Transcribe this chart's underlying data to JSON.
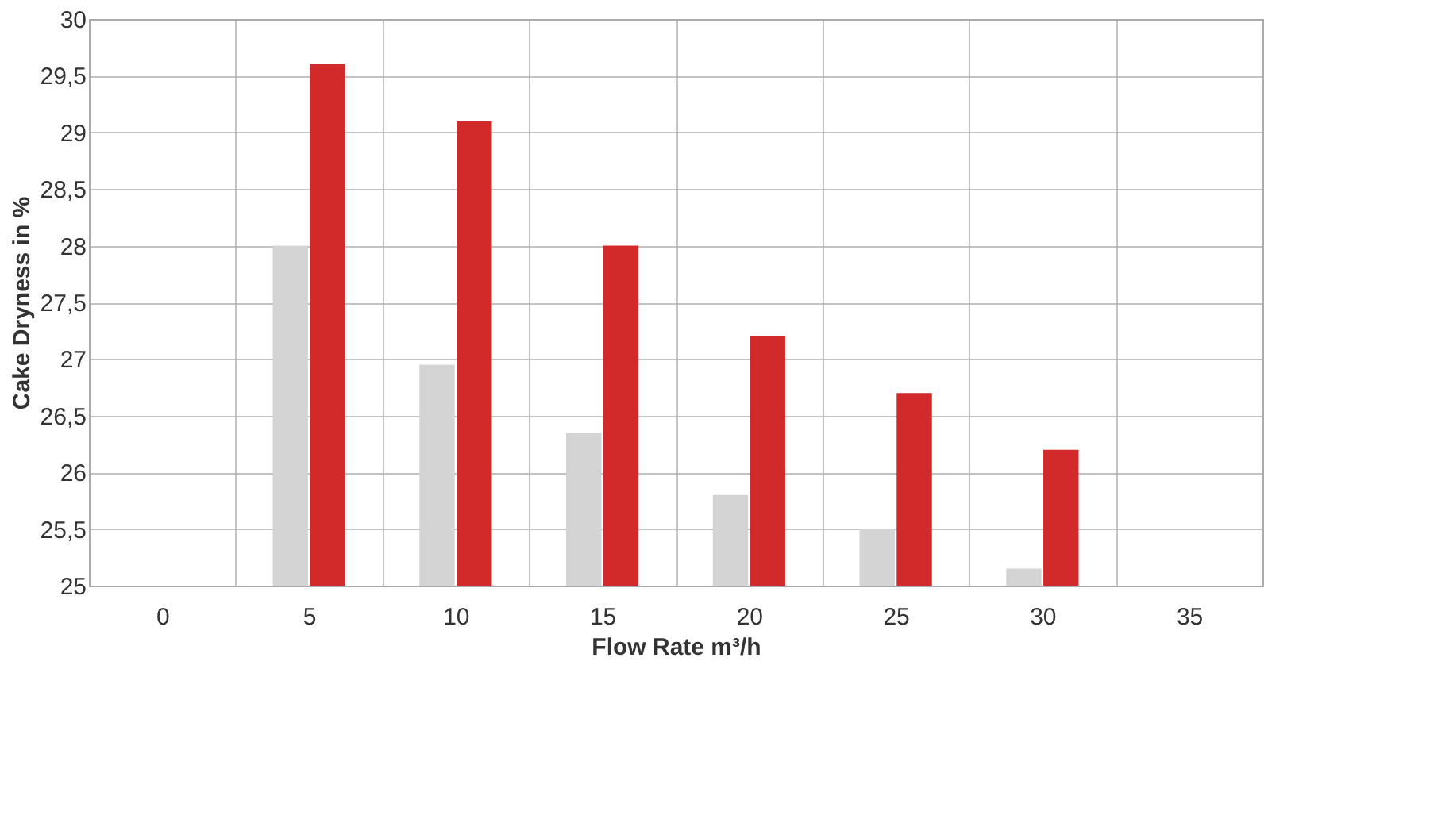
{
  "chart_data": {
    "type": "bar",
    "xlabel": "Flow Rate m³/h",
    "ylabel": "Cake Dryness in %",
    "categories": [
      "0",
      "5",
      "10",
      "15",
      "20",
      "25",
      "30",
      "35"
    ],
    "series": [
      {
        "color": "#d4d4d4",
        "values": [
          null,
          28.0,
          26.95,
          26.35,
          25.8,
          25.5,
          25.15,
          null
        ]
      },
      {
        "color": "#d22a2a",
        "values": [
          null,
          29.6,
          29.1,
          28.0,
          27.2,
          26.7,
          26.2,
          null
        ]
      }
    ],
    "ylim": [
      25,
      30
    ],
    "yticks": [
      25,
      {
        "value": 25.5,
        "label": "25,5"
      },
      26,
      {
        "value": 26.5,
        "label": "26,5"
      },
      27,
      {
        "value": 27.5,
        "label": "27,5"
      },
      28,
      {
        "value": 28.5,
        "label": "28,5"
      },
      29,
      {
        "value": 29.5,
        "label": "29,5"
      },
      30
    ],
    "grid": true,
    "legend": false
  }
}
